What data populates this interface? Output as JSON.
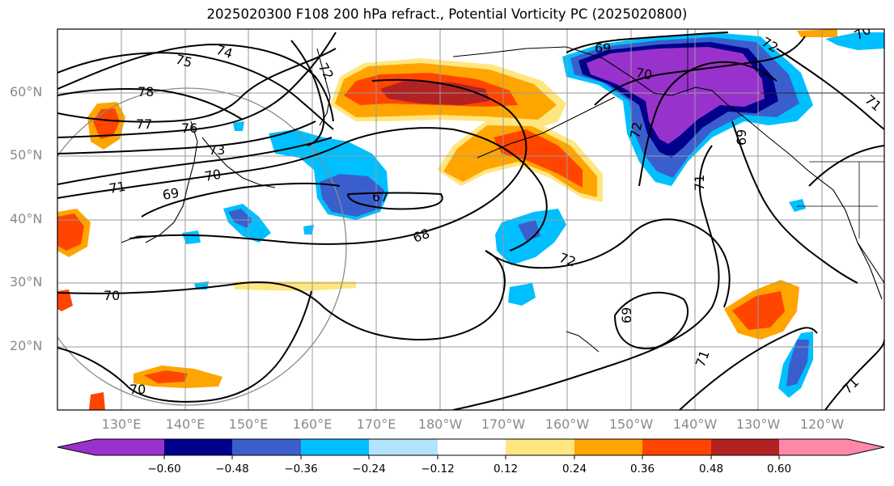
{
  "title": "2025020300 F108 200 hPa refract., Potential Vorticity PC (2025020800)",
  "latitude_labels": [
    "60°N",
    "50°N",
    "40°N",
    "30°N",
    "20°N"
  ],
  "longitude_labels": [
    "130°E",
    "140°E",
    "150°E",
    "160°E",
    "170°E",
    "180°W",
    "170°W",
    "160°W",
    "150°W",
    "140°W",
    "130°W",
    "120°W"
  ],
  "contour_labels": [
    "75",
    "74",
    "72",
    "78",
    "77",
    "76",
    "73",
    "71",
    "70",
    "69",
    "67",
    "68",
    "72",
    "69",
    "70",
    "72",
    "70",
    "69",
    "71",
    "72",
    "69",
    "71",
    "70",
    "71",
    "70",
    "71"
  ],
  "colorbar": {
    "tick_labels": [
      "−0.60",
      "−0.48",
      "−0.36",
      "−0.24",
      "−0.12",
      "0.12",
      "0.24",
      "0.36",
      "0.48",
      "0.60"
    ],
    "colors": [
      "#9932cc",
      "#00008b",
      "#3a5fcd",
      "#00bfff",
      "#b2e4ff",
      "#ffffff",
      "#ffe680",
      "#ffa500",
      "#ff4500",
      "#b22222",
      "#ff88aa"
    ]
  },
  "colors": {
    "contour": "#000000",
    "grid": "#9a9a9a",
    "coast": "#000000",
    "tick_text": "#8a8a8a"
  }
}
